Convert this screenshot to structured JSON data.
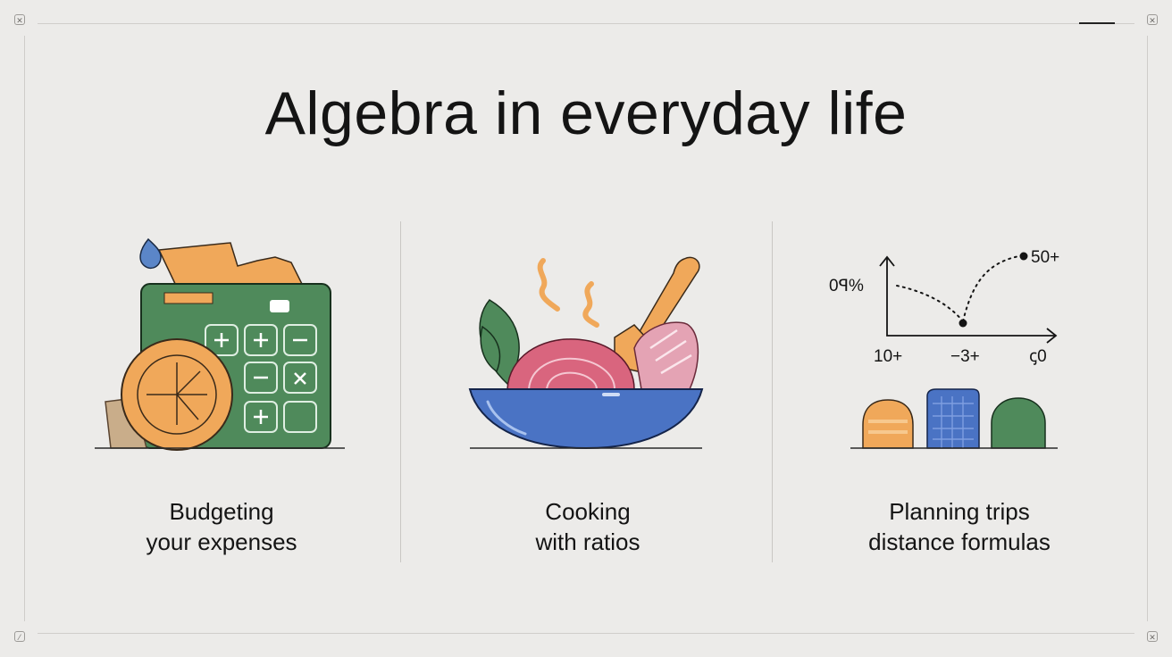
{
  "title": "Algebra in everyday life",
  "panels": [
    {
      "caption_line1": "Budgeting",
      "caption_line2": "your expenses"
    },
    {
      "caption_line1": "Cooking",
      "caption_line2": "with ratios"
    },
    {
      "caption_line1": "Planning trips",
      "caption_line2": "distance formulas",
      "graph": {
        "y_label": "0ꟼ%",
        "point_label": "50+",
        "x_tick_labels": [
          "10+",
          "−3+",
          "ꞔ0"
        ]
      }
    }
  ],
  "colors": {
    "background": "#ecebe9",
    "green": "#4f8a5b",
    "orange": "#f0a85a",
    "blue": "#4a73c4",
    "pink": "#d9657e"
  },
  "icons": [
    "calculator-icon",
    "coin-icon",
    "salad-bowl-icon",
    "spoon-icon",
    "line-graph-icon",
    "buildings-icon"
  ]
}
